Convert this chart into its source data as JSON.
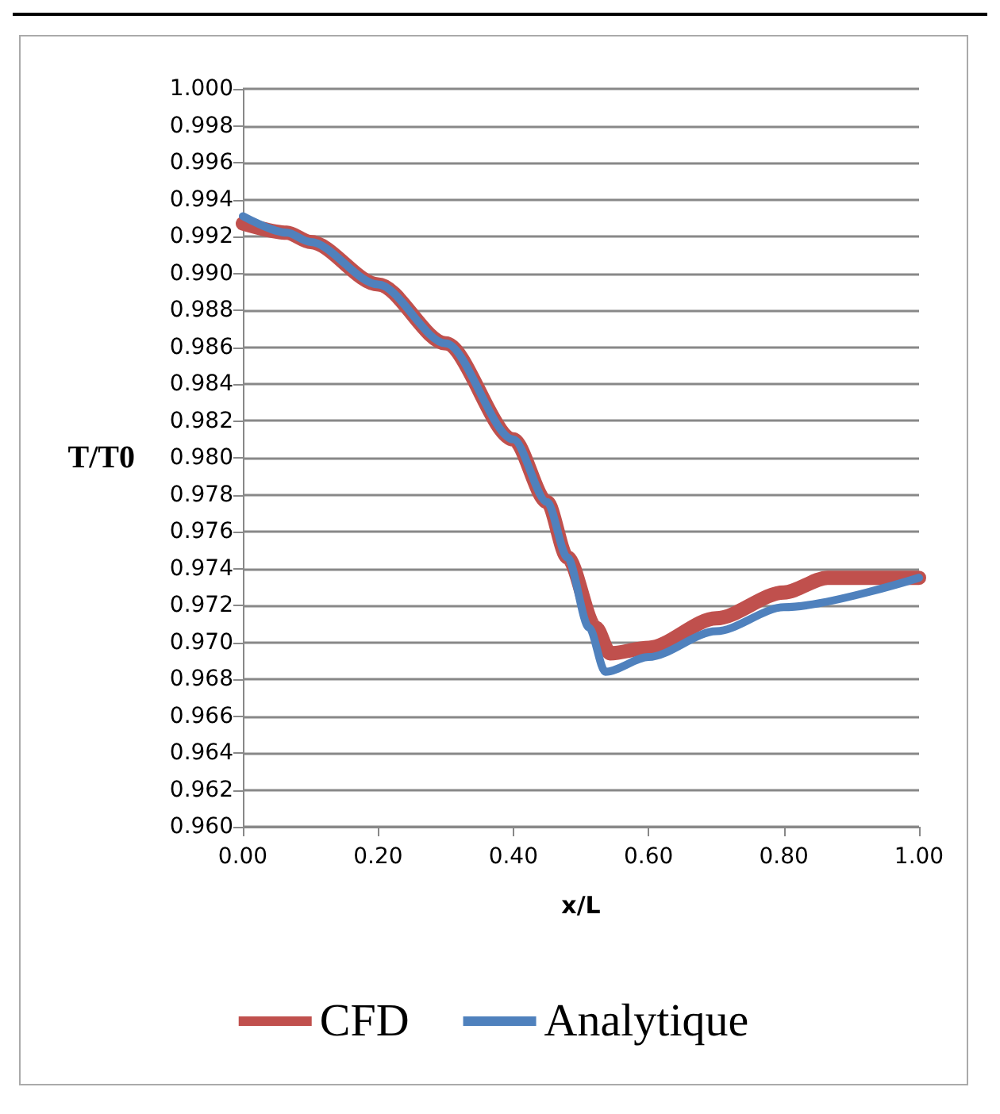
{
  "chart_data": {
    "type": "line",
    "xlabel": "x/L",
    "ylabel": "T/T0",
    "xlim": [
      0,
      1
    ],
    "xticks": [
      {
        "value": 0,
        "label": "0.00"
      },
      {
        "value": 0.2,
        "label": "0.20"
      },
      {
        "value": 0.4,
        "label": "0.40"
      },
      {
        "value": 0.6,
        "label": "0.60"
      },
      {
        "value": 0.8,
        "label": "0.80"
      },
      {
        "value": 1,
        "label": "1.00"
      }
    ],
    "ylim": [
      0.96,
      1
    ],
    "yticks": [
      {
        "value": 0.96,
        "label": "0.960"
      },
      {
        "value": 0.962,
        "label": "0.962"
      },
      {
        "value": 0.964,
        "label": "0.964"
      },
      {
        "value": 0.966,
        "label": "0.966"
      },
      {
        "value": 0.968,
        "label": "0.968"
      },
      {
        "value": 0.97,
        "label": "0.970"
      },
      {
        "value": 0.972,
        "label": "0.972"
      },
      {
        "value": 0.974,
        "label": "0.974"
      },
      {
        "value": 0.976,
        "label": "0.976"
      },
      {
        "value": 0.978,
        "label": "0.978"
      },
      {
        "value": 0.98,
        "label": "0.980"
      },
      {
        "value": 0.982,
        "label": "0.982"
      },
      {
        "value": 0.984,
        "label": "0.984"
      },
      {
        "value": 0.986,
        "label": "0.986"
      },
      {
        "value": 0.988,
        "label": "0.988"
      },
      {
        "value": 0.99,
        "label": "0.990"
      },
      {
        "value": 0.992,
        "label": "0.992"
      },
      {
        "value": 0.994,
        "label": "0.994"
      },
      {
        "value": 0.996,
        "label": "0.996"
      },
      {
        "value": 0.998,
        "label": "0.998"
      },
      {
        "value": 1,
        "label": "1.000"
      }
    ],
    "grid": "y",
    "legend": "bottom",
    "marker": "none",
    "line_style": "solid",
    "series": [
      {
        "name": "CFD",
        "color": "#c0504d",
        "x": [
          0,
          0.065,
          0.1,
          0.2,
          0.3,
          0.4,
          0.45,
          0.48,
          0.522,
          0.543,
          0.6,
          0.7,
          0.8,
          0.865,
          1
        ],
        "values": [
          0.9927,
          0.9922,
          0.9917,
          0.9894,
          0.9862,
          0.981,
          0.9776,
          0.9746,
          0.9708,
          0.9694,
          0.9697,
          0.9713,
          0.9727,
          0.9735,
          0.9735
        ]
      },
      {
        "name": "Analytique",
        "color": "#4f81bd",
        "x": [
          0,
          0.065,
          0.1,
          0.2,
          0.3,
          0.4,
          0.45,
          0.48,
          0.512,
          0.536,
          0.6,
          0.7,
          0.8,
          1
        ],
        "values": [
          0.9931,
          0.9922,
          0.9917,
          0.9894,
          0.9862,
          0.981,
          0.9776,
          0.9746,
          0.9708,
          0.9684,
          0.9692,
          0.9706,
          0.9719,
          0.9735
        ]
      }
    ]
  }
}
